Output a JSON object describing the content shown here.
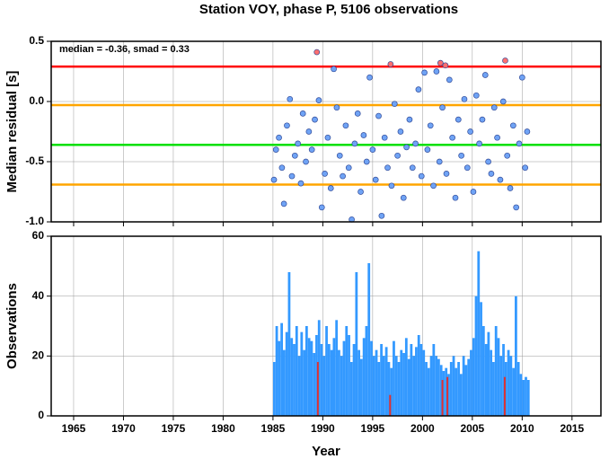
{
  "chart_data": [
    {
      "type": "scatter",
      "title": "Station VOY, phase P, 5106 observations",
      "ylabel": "Median residual [s]",
      "annotation": "median = -0.36, smad = 0.33",
      "xlim": [
        1962.75,
        2017.9
      ],
      "xticks": [
        1965,
        1970,
        1975,
        1980,
        1985,
        1990,
        1995,
        2000,
        2005,
        2010,
        2015
      ],
      "ylim": [
        -1.0,
        0.5
      ],
      "yticks": [
        {
          "value": -1.0,
          "label": "-1.0"
        },
        -0.5,
        {
          "value": 0.0,
          "label": "0.0"
        },
        0.5
      ],
      "grid": true,
      "reference_lines": [
        {
          "value": 0.29,
          "color": "#ff0000"
        },
        {
          "value": -0.03,
          "color": "#ffa500"
        },
        {
          "value": -0.36,
          "color": "#00e000"
        },
        {
          "value": -0.69,
          "color": "#ffa500"
        }
      ],
      "series": [
        {
          "color": "#6fa3f5",
          "x": [
            1985.1,
            1985.3,
            1985.6,
            1985.9,
            1986.1,
            1986.4,
            1986.7,
            1986.9,
            1987.2,
            1987.5,
            1987.8,
            1988.0,
            1988.3,
            1988.6,
            1988.9,
            1989.2,
            1989.6,
            1989.9,
            1990.2,
            1990.5,
            1990.8,
            1991.1,
            1991.4,
            1991.7,
            1992.0,
            1992.3,
            1992.6,
            1992.9,
            1993.2,
            1993.5,
            1993.8,
            1994.1,
            1994.4,
            1994.7,
            1995.0,
            1995.3,
            1995.6,
            1995.9,
            1996.2,
            1996.5,
            1996.9,
            1997.2,
            1997.5,
            1997.8,
            1998.1,
            1998.4,
            1998.7,
            1999.0,
            1999.3,
            1999.6,
            1999.9,
            2000.2,
            2000.5,
            2000.8,
            2001.1,
            2001.4,
            2001.7,
            2002.0,
            2002.4,
            2002.7,
            2003.0,
            2003.3,
            2003.6,
            2003.9,
            2004.2,
            2004.5,
            2004.8,
            2005.1,
            2005.4,
            2005.7,
            2006.0,
            2006.3,
            2006.6,
            2006.9,
            2007.2,
            2007.5,
            2007.8,
            2008.1,
            2008.5,
            2008.8,
            2009.1,
            2009.4,
            2009.7,
            2010.0,
            2010.3,
            2010.5
          ],
          "values": [
            -0.65,
            -0.4,
            -0.3,
            -0.55,
            -0.85,
            -0.2,
            0.02,
            -0.62,
            -0.45,
            -0.35,
            -0.68,
            -0.1,
            -0.5,
            -0.25,
            -0.4,
            -0.15,
            0.01,
            -0.88,
            -0.6,
            -0.3,
            -0.72,
            0.27,
            -0.05,
            -0.45,
            -0.62,
            -0.2,
            -0.55,
            -0.98,
            -0.35,
            -0.1,
            -0.75,
            -0.28,
            -0.5,
            0.2,
            -0.4,
            -0.65,
            -0.12,
            -0.95,
            -0.3,
            -0.55,
            -0.7,
            -0.02,
            -0.45,
            -0.25,
            -0.8,
            -0.38,
            -0.15,
            -0.55,
            -0.35,
            0.1,
            -0.62,
            0.24,
            -0.4,
            -0.2,
            -0.7,
            0.25,
            -0.5,
            -0.05,
            -0.6,
            0.18,
            -0.3,
            -0.8,
            -0.15,
            -0.45,
            0.02,
            -0.55,
            -0.25,
            -0.75,
            0.05,
            -0.35,
            -0.15,
            0.22,
            -0.5,
            -0.6,
            -0.05,
            -0.3,
            -0.65,
            0.0,
            -0.45,
            -0.72,
            -0.2,
            -0.88,
            -0.35,
            0.2,
            -0.55,
            -0.25
          ]
        },
        {
          "color": "#ff6f6f",
          "x": [
            1989.4,
            1996.8,
            2001.8,
            2002.3,
            2008.3
          ],
          "values": [
            0.41,
            0.31,
            0.32,
            0.3,
            0.34
          ]
        }
      ]
    },
    {
      "type": "bar",
      "xlabel": "Year",
      "ylabel": "Observations",
      "xlim": [
        1962.75,
        2017.9
      ],
      "xticks": [
        1965,
        1970,
        1975,
        1980,
        1985,
        1990,
        1995,
        2000,
        2005,
        2010,
        2015
      ],
      "ylim": [
        0,
        60
      ],
      "yticks": [
        0,
        20,
        40,
        60
      ],
      "grid": true,
      "series": [
        {
          "color": "#3399ff",
          "x": [
            1985.0,
            1985.25,
            1985.5,
            1985.75,
            1986.0,
            1986.25,
            1986.5,
            1986.75,
            1987.0,
            1987.25,
            1987.5,
            1987.75,
            1988.0,
            1988.25,
            1988.5,
            1988.75,
            1989.0,
            1989.25,
            1989.5,
            1989.75,
            1990.0,
            1990.25,
            1990.5,
            1990.75,
            1991.0,
            1991.25,
            1991.5,
            1991.75,
            1992.0,
            1992.25,
            1992.5,
            1992.75,
            1993.0,
            1993.25,
            1993.5,
            1993.75,
            1994.0,
            1994.25,
            1994.5,
            1994.75,
            1995.0,
            1995.25,
            1995.5,
            1995.75,
            1996.0,
            1996.25,
            1996.5,
            1996.75,
            1997.0,
            1997.25,
            1997.5,
            1997.75,
            1998.0,
            1998.25,
            1998.5,
            1998.75,
            1999.0,
            1999.25,
            1999.5,
            1999.75,
            2000.0,
            2000.25,
            2000.5,
            2000.75,
            2001.0,
            2001.25,
            2001.5,
            2001.75,
            2002.0,
            2002.25,
            2002.5,
            2002.75,
            2003.0,
            2003.25,
            2003.5,
            2003.75,
            2004.0,
            2004.25,
            2004.5,
            2004.75,
            2005.0,
            2005.25,
            2005.5,
            2005.75,
            2006.0,
            2006.25,
            2006.5,
            2006.75,
            2007.0,
            2007.25,
            2007.5,
            2007.75,
            2008.0,
            2008.25,
            2008.5,
            2008.75,
            2009.0,
            2009.25,
            2009.5,
            2009.75,
            2010.0,
            2010.25,
            2010.5
          ],
          "values": [
            18,
            30,
            25,
            31,
            22,
            28,
            48,
            26,
            24,
            30,
            20,
            28,
            22,
            30,
            26,
            25,
            21,
            27,
            32,
            24,
            20,
            30,
            24,
            22,
            26,
            32,
            22,
            20,
            25,
            30,
            27,
            18,
            24,
            48,
            22,
            19,
            26,
            30,
            51,
            25,
            20,
            22,
            18,
            24,
            20,
            23,
            18,
            16,
            25,
            20,
            18,
            22,
            21,
            26,
            19,
            24,
            20,
            23,
            27,
            24,
            22,
            18,
            16,
            20,
            24,
            20,
            19,
            17,
            15,
            16,
            14,
            18,
            20,
            16,
            18,
            14,
            20,
            17,
            19,
            22,
            26,
            40,
            55,
            38,
            30,
            24,
            28,
            22,
            18,
            30,
            26,
            20,
            24,
            18,
            22,
            20,
            16,
            40,
            18,
            14,
            12,
            13,
            12
          ]
        },
        {
          "color": "#e03030",
          "x": [
            1989.5,
            1996.75,
            2002.0,
            2002.5,
            2008.25
          ],
          "values": [
            18,
            7,
            12,
            13,
            13
          ]
        }
      ]
    }
  ]
}
